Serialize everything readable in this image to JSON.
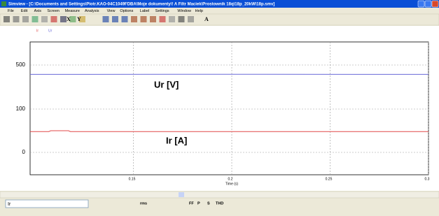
{
  "window": {
    "title": "Simview - [C:\\Documents and Settings\\Piotr.KAO-04C1049FDBA\\Moje dokumenty\\! A Filtr Maciek\\Prostownik 18q\\18p_20kW\\18p.smv]",
    "menu": [
      "File",
      "Edit",
      "Axis",
      "Screen",
      "Measure",
      "Analysis",
      "View",
      "Options",
      "Label",
      "Settings",
      "Window",
      "Help"
    ],
    "toolbar": [
      "X",
      "Y",
      "A"
    ],
    "bottom_toolbar": [
      "rms",
      "FF",
      "P",
      "S",
      "THD"
    ],
    "signal_select": "Ir"
  },
  "chart_data": {
    "type": "line",
    "x": [
      0.0975,
      0.107,
      0.108,
      0.117,
      0.118,
      0.2,
      0.3
    ],
    "series": [
      {
        "name": "Ir",
        "color": "#e04848",
        "values": [
          48,
          48,
          50,
          50,
          48,
          48,
          48
        ]
      },
      {
        "name": "Ur",
        "color": "#6a6ad8",
        "values": [
          415,
          415,
          415,
          415,
          415,
          416,
          415
        ]
      }
    ],
    "annotations": [
      "Ur [V]",
      "Ir [A]"
    ],
    "xlabel": "Time (s)",
    "xlim": [
      0.0975,
      0.3
    ],
    "xticks": [
      0.15,
      0.2,
      0.25,
      0.3
    ],
    "ylim": [
      -52,
      710
    ],
    "yticks": [
      500,
      100,
      0
    ],
    "grid": true
  }
}
